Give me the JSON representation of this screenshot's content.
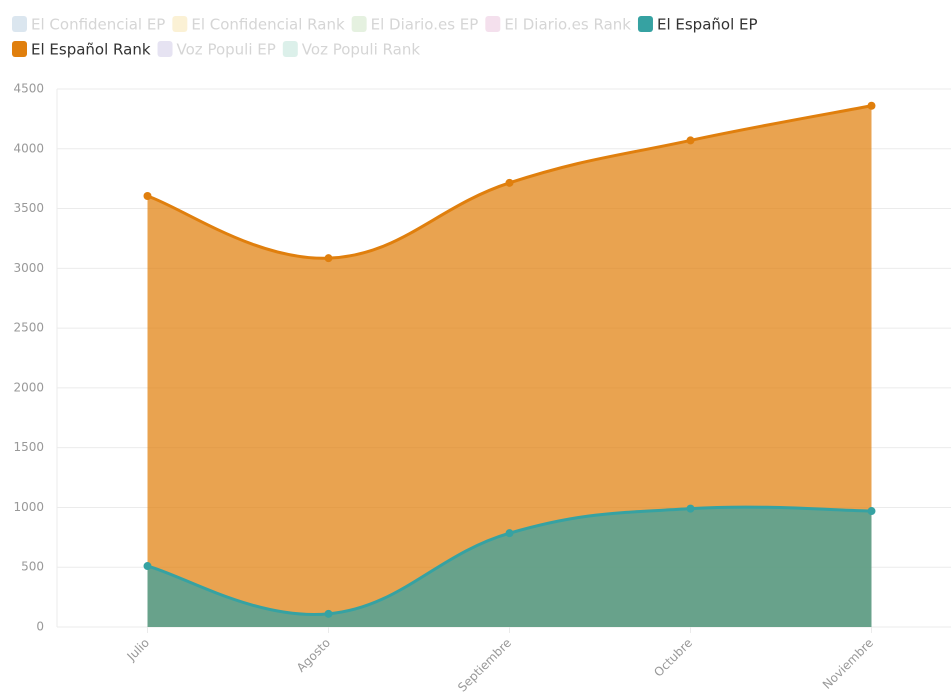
{
  "chart_data": {
    "type": "area",
    "categories": [
      "Julio",
      "Agosto",
      "Septiembre",
      "Octubre",
      "Noviembre"
    ],
    "series": [
      {
        "name": "El Confidencial EP",
        "color": "#9ab8d4",
        "hidden": true
      },
      {
        "name": "El Confidencial Rank",
        "color": "#f5d98a",
        "hidden": true
      },
      {
        "name": "El Diario.es EP",
        "color": "#b6d9a8",
        "hidden": true
      },
      {
        "name": "El Diario.es Rank",
        "color": "#e0a8cc",
        "hidden": true
      },
      {
        "name": "El Español EP",
        "color": "#36a2a2",
        "values": [
          510,
          110,
          785,
          990,
          970
        ]
      },
      {
        "name": "El Español Rank",
        "color": "#e07f0d",
        "values": [
          3605,
          3085,
          3715,
          4070,
          4360
        ]
      },
      {
        "name": "Voz Populi EP",
        "color": "#b8b2dc",
        "hidden": true
      },
      {
        "name": "Voz Populi Rank",
        "color": "#9ed6c6",
        "hidden": true
      }
    ],
    "ylim": [
      0,
      4500
    ],
    "yticks": [
      0,
      500,
      1000,
      1500,
      2000,
      2500,
      3000,
      3500,
      4000,
      4500
    ],
    "grid": true
  }
}
